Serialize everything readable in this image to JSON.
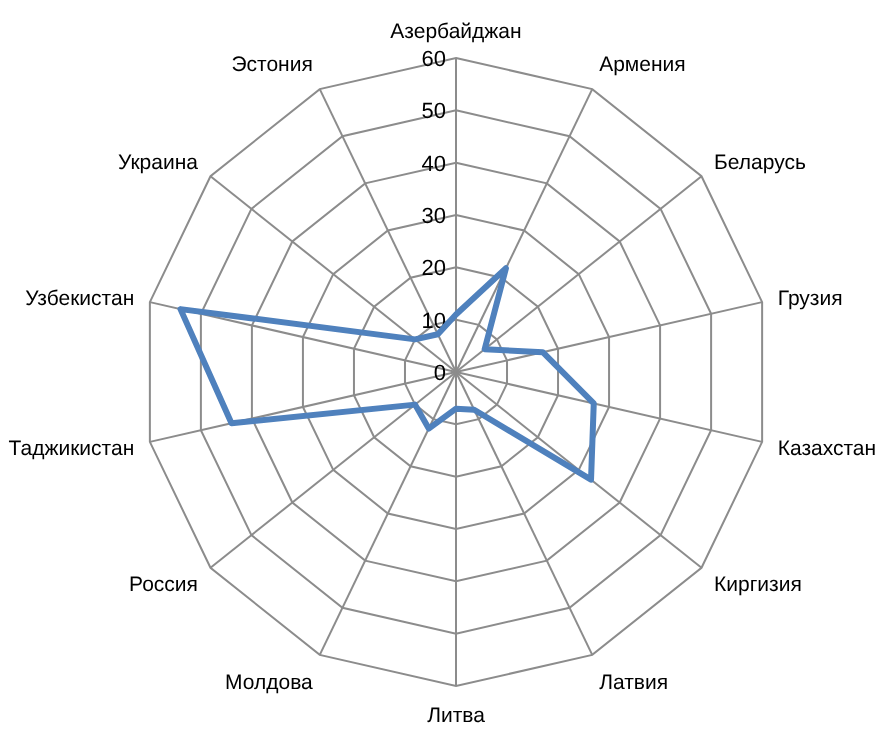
{
  "chart_data": {
    "type": "radar",
    "categories": [
      "Азербайджан",
      "Армения",
      "Беларусь",
      "Грузия",
      "Казахстан",
      "Киргизия",
      "Латвия",
      "Литва",
      "Молдова",
      "Россия",
      "Таджикистан",
      "Узбекистан",
      "Украина",
      "Эстония"
    ],
    "series": [
      {
        "color": "#4f81bd",
        "values": [
          11,
          22,
          7,
          17,
          27,
          33,
          8,
          7,
          12,
          10,
          44,
          54,
          10,
          8
        ]
      }
    ],
    "ylim": [
      0,
      60
    ],
    "yticks": [
      0,
      10,
      20,
      30,
      40,
      50,
      60
    ],
    "grid": true,
    "marker": "none"
  }
}
